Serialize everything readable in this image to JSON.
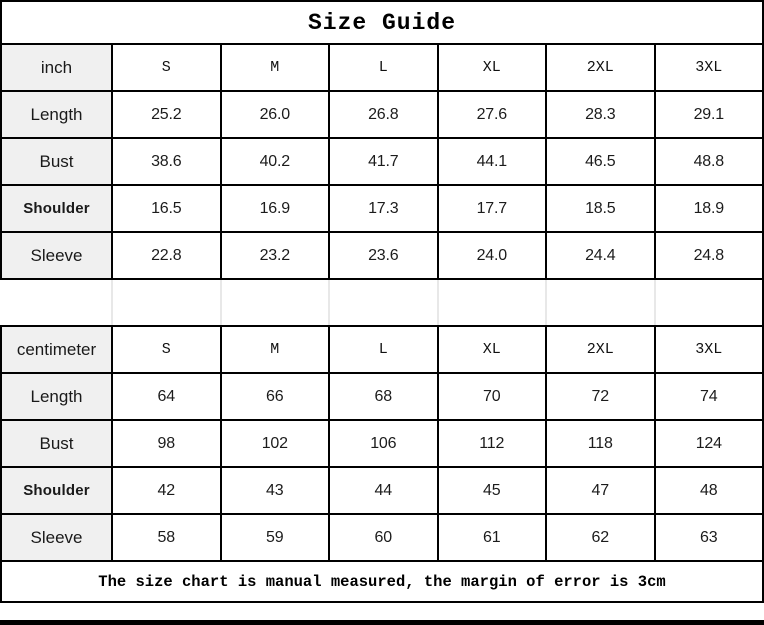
{
  "title": "Size Guide",
  "footer_note": "The size chart is manual measured, the margin of error is 3cm",
  "colors": {
    "border": "#000000",
    "label_column_bg": "#f0f0f0",
    "background": "#ffffff",
    "text": "#1a1a1a"
  },
  "chart_data": {
    "type": "table",
    "title": "Size Guide",
    "columns": [
      "S",
      "M",
      "L",
      "XL",
      "2XL",
      "3XL"
    ],
    "sections": [
      {
        "unit_label": "inch",
        "rows": [
          {
            "label": "Length",
            "values": [
              "25.2",
              "26.0",
              "26.8",
              "27.6",
              "28.3",
              "29.1"
            ]
          },
          {
            "label": "Bust",
            "values": [
              "38.6",
              "40.2",
              "41.7",
              "44.1",
              "46.5",
              "48.8"
            ]
          },
          {
            "label": "Shoulder",
            "values": [
              "16.5",
              "16.9",
              "17.3",
              "17.7",
              "18.5",
              "18.9"
            ]
          },
          {
            "label": "Sleeve",
            "values": [
              "22.8",
              "23.2",
              "23.6",
              "24.0",
              "24.4",
              "24.8"
            ]
          }
        ]
      },
      {
        "unit_label": "centimeter",
        "rows": [
          {
            "label": "Length",
            "values": [
              "64",
              "66",
              "68",
              "70",
              "72",
              "74"
            ]
          },
          {
            "label": "Bust",
            "values": [
              "98",
              "102",
              "106",
              "112",
              "118",
              "124"
            ]
          },
          {
            "label": "Shoulder",
            "values": [
              "42",
              "43",
              "44",
              "45",
              "47",
              "48"
            ]
          },
          {
            "label": "Sleeve",
            "values": [
              "58",
              "59",
              "60",
              "61",
              "62",
              "63"
            ]
          }
        ]
      }
    ],
    "footnote": "The size chart is manual measured, the margin of error is 3cm"
  }
}
